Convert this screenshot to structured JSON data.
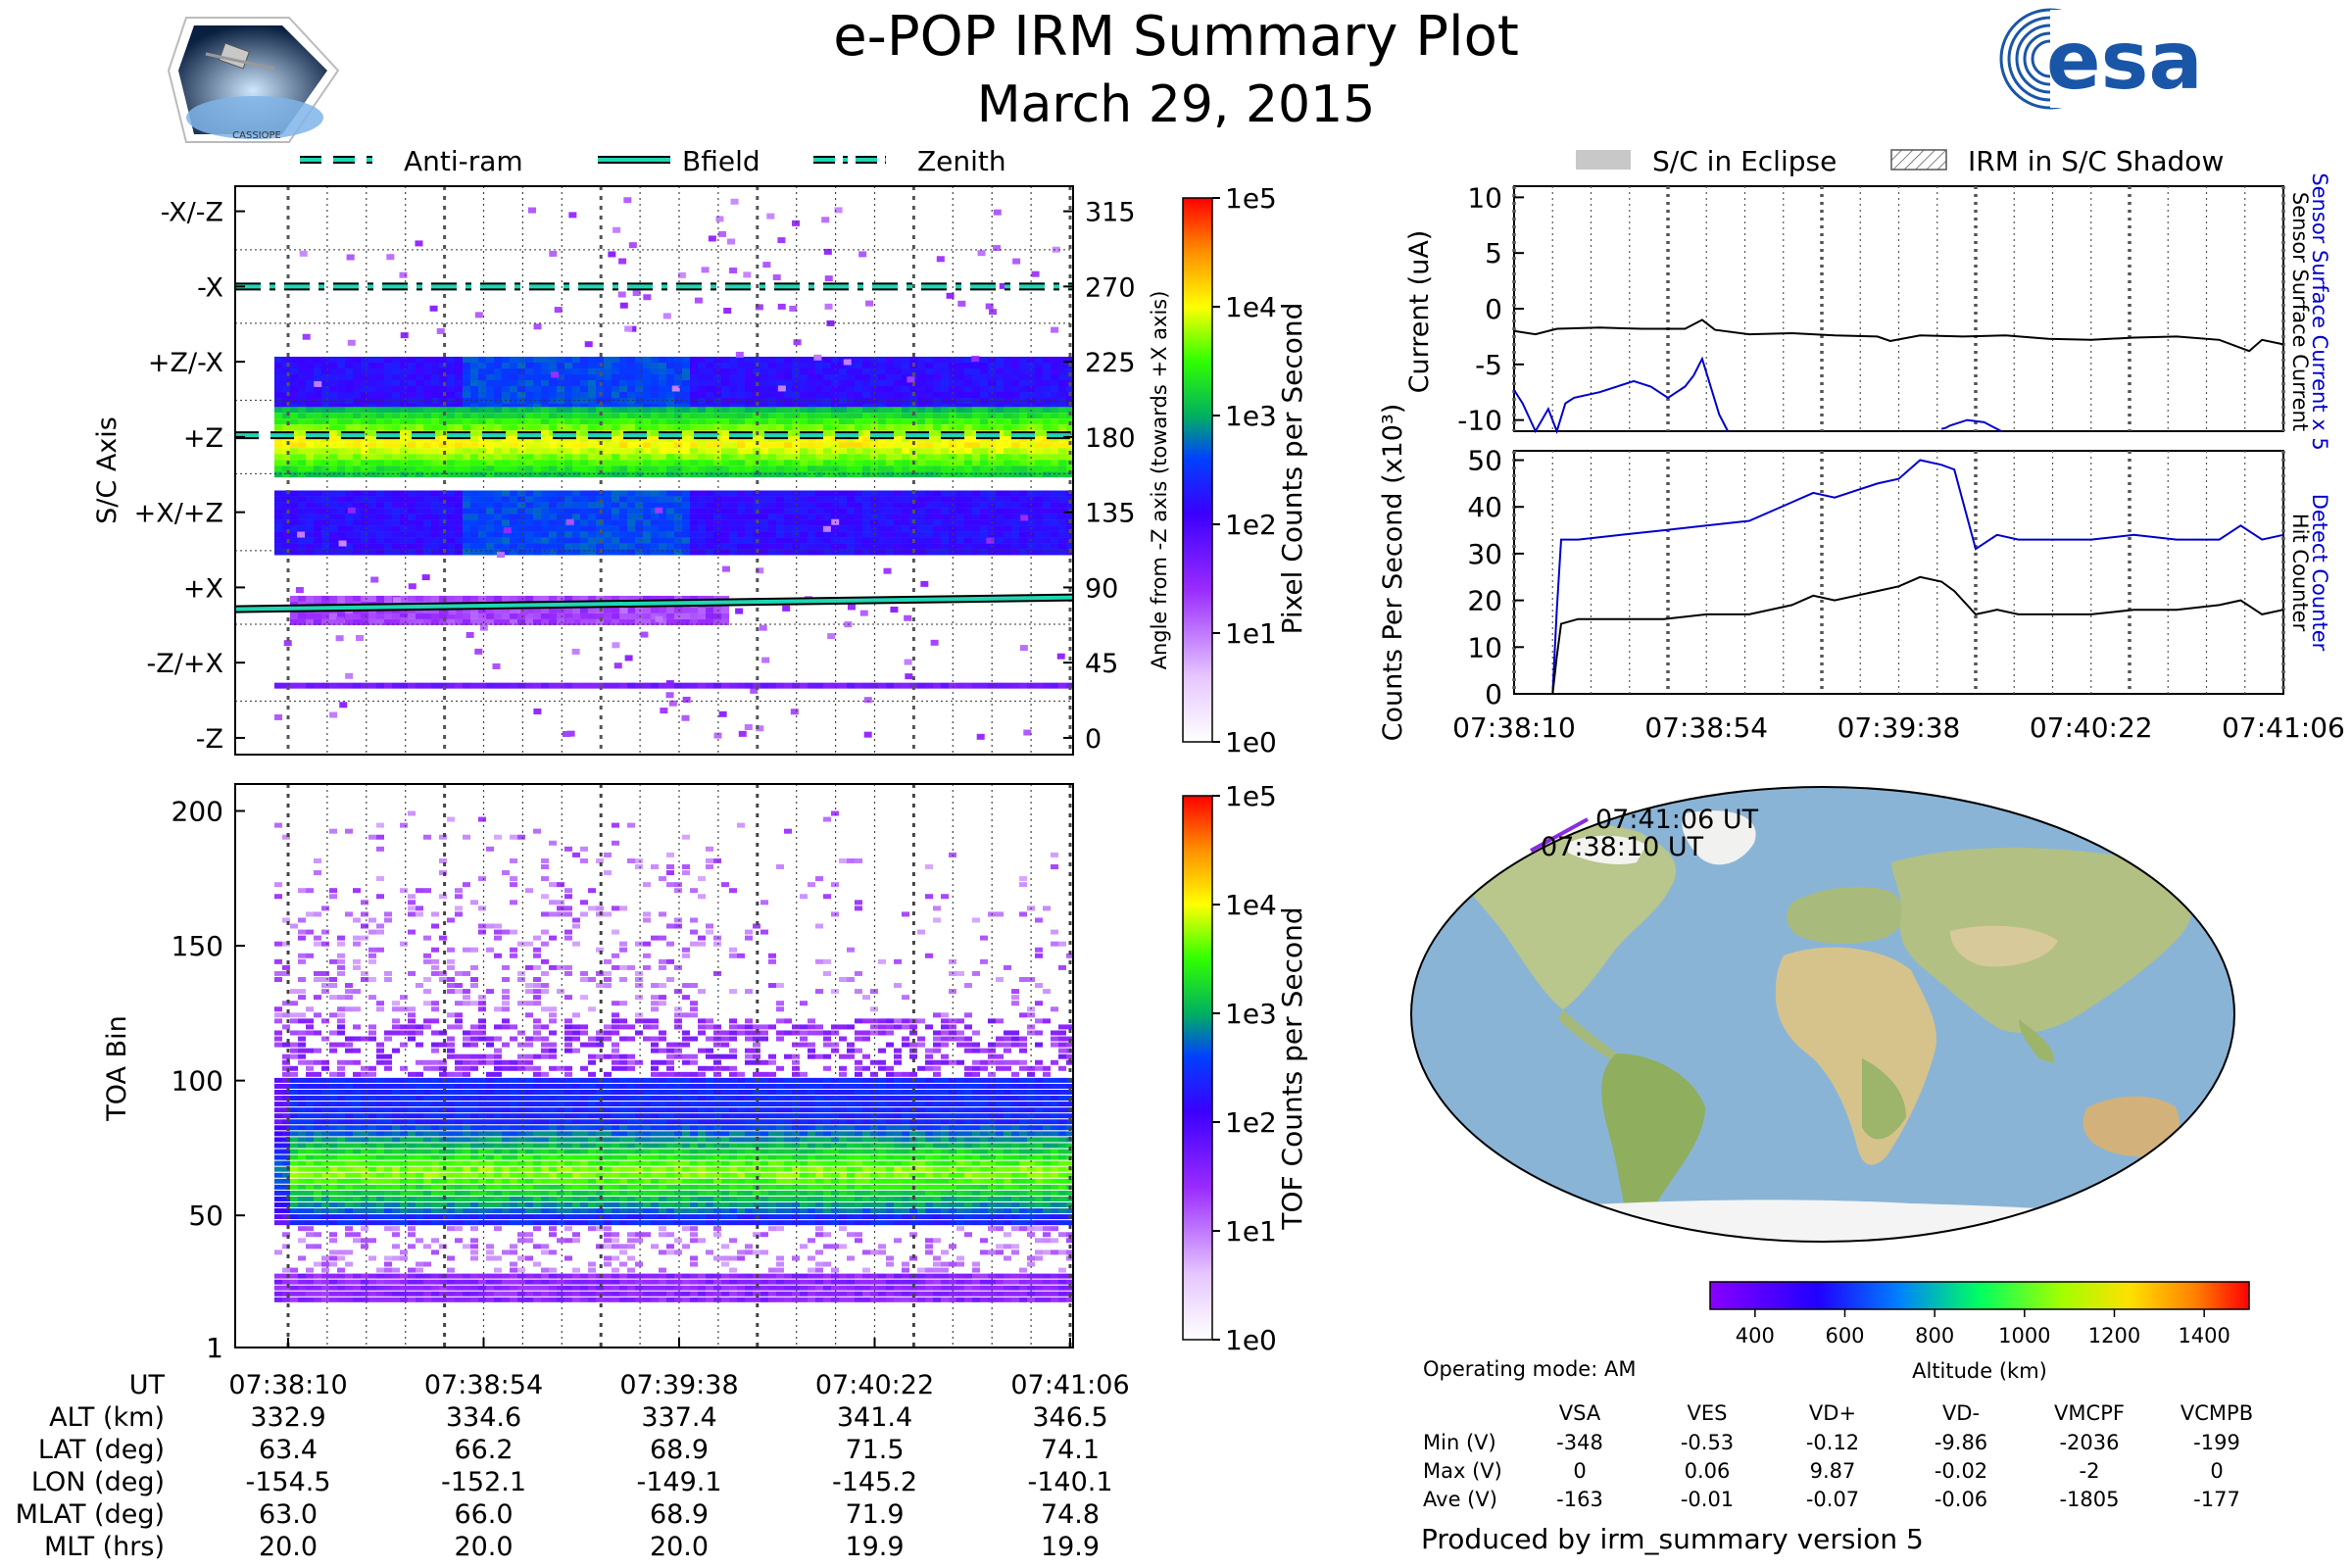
{
  "title": "e-POP IRM Summary Plot",
  "subtitle": "March 29, 2015",
  "logos": {
    "mission": "CASSIOPE",
    "agency": "esa"
  },
  "legend_left": {
    "items": [
      "Anti-ram",
      "Bfield",
      "Zenith"
    ]
  },
  "legend_right": {
    "items": [
      "S/C in Eclipse",
      "IRM in S/C Shadow"
    ]
  },
  "colors": {
    "line_cyan": "#1fd6b4",
    "blue": "#0000cc",
    "black": "#000000"
  },
  "time_ticks": [
    "07:38:10",
    "07:38:54",
    "07:39:38",
    "07:40:22",
    "07:41:06"
  ],
  "chart_data": [
    {
      "id": "pixel",
      "type": "heatmap",
      "ylabel": "S/C Axis",
      "y_axis_ticks": [
        "-X/-Z",
        "-X",
        "+Z/-X",
        "+Z",
        "+X/+Z",
        "+X",
        "-Z/+X",
        "-Z"
      ],
      "angle_label": "Angle from -Z axis (towards +X axis)",
      "angle_ticks": [
        "315",
        "270",
        "225",
        "180",
        "135",
        "90",
        "45",
        "0"
      ],
      "ylim": [
        -10,
        330
      ],
      "colorbar": {
        "label": "Pixel Counts per Second",
        "ticks": [
          "1e5",
          "1e4",
          "1e3",
          "1e2",
          "1e1",
          "1e0"
        ]
      },
      "lines": [
        {
          "name": "Zenith",
          "angle": 270
        },
        {
          "name": "Anti-ram",
          "angle": 181
        },
        {
          "name": "Bfield",
          "angle_start": 77,
          "angle_end": 84
        }
      ],
      "bands": [
        {
          "angle_low": 198,
          "angle_high": 228,
          "log_count": 2.0
        },
        {
          "angle_low": 158,
          "angle_high": 198,
          "log_count": 3.0
        },
        {
          "angle_low": 112,
          "angle_high": 148,
          "log_count": 2.0
        },
        {
          "angle_low": 70,
          "angle_high": 85,
          "log_count": 1.3
        }
      ]
    },
    {
      "id": "tof",
      "type": "heatmap",
      "ylabel": "TOA Bin",
      "y_ticks": [
        "1",
        "50",
        "100",
        "150",
        "200"
      ],
      "ylim": [
        1,
        210
      ],
      "colorbar": {
        "label": "TOF Counts per Second",
        "ticks": [
          "1e5",
          "1e4",
          "1e3",
          "1e2",
          "1e1",
          "1e0"
        ]
      },
      "bands": [
        {
          "toa_low": 47,
          "toa_high": 102,
          "log_count": 2.0
        },
        {
          "toa_low": 55,
          "toa_high": 82,
          "log_count": 2.8
        },
        {
          "toa_low": 18,
          "toa_high": 30,
          "log_count": 1.0
        }
      ]
    },
    {
      "id": "current",
      "type": "line",
      "ylabel": "Current (uA)",
      "y_ticks": [
        "10",
        "5",
        "0",
        "-5",
        "-10"
      ],
      "ylim": [
        -11,
        11
      ],
      "right_labels": [
        "Sensor Surface Current x 5",
        "Sensor Surface Current"
      ],
      "series": [
        {
          "name": "Sensor Surface Current",
          "color": "#000000",
          "x": [
            0,
            5,
            10,
            20,
            30,
            40,
            44,
            47,
            55,
            65,
            75,
            85,
            88,
            95,
            105,
            115,
            125,
            135,
            145,
            155,
            165,
            172,
            175,
            180
          ],
          "y": [
            -2,
            -2.3,
            -1.8,
            -1.7,
            -1.8,
            -1.8,
            -1,
            -1.9,
            -2.3,
            -2.2,
            -2.4,
            -2.5,
            -2.9,
            -2.4,
            -2.5,
            -2.4,
            -2.7,
            -2.8,
            -2.6,
            -2.5,
            -2.8,
            -3.8,
            -2.8,
            -3.2
          ]
        },
        {
          "name": "Sensor Surface Current x 5",
          "color": "#0000cc",
          "x": [
            0,
            2,
            5,
            8,
            10,
            12,
            14,
            20,
            28,
            32,
            36,
            40,
            42,
            44,
            46,
            48,
            50
          ],
          "y": [
            -7.3,
            -8.5,
            -11,
            -9,
            -11,
            -8.5,
            -8,
            -7.5,
            -6.5,
            -7,
            -8,
            -7,
            -6,
            -4.5,
            -7,
            -9.5,
            -11
          ]
        },
        {
          "name": "Sensor Surface Current x 5 (late)",
          "color": "#0000cc",
          "x": [
            100,
            101,
            102,
            106,
            110,
            114
          ],
          "y": [
            -10.8,
            -10.7,
            -10.5,
            -10,
            -10.2,
            -11
          ]
        }
      ]
    },
    {
      "id": "counts",
      "type": "line",
      "ylabel": "Counts Per Second (x10³)",
      "y_ticks": [
        "50",
        "40",
        "30",
        "20",
        "10",
        "0"
      ],
      "ylim": [
        0,
        52
      ],
      "right_labels": [
        "Detect Counter",
        "Hit Counter"
      ],
      "series": [
        {
          "name": "Detect Counter",
          "color": "#0000cc",
          "x": [
            0,
            4,
            9,
            10,
            11,
            15,
            25,
            35,
            45,
            55,
            65,
            70,
            75,
            85,
            90,
            95,
            100,
            103,
            108,
            113,
            118,
            125,
            135,
            145,
            155,
            165,
            170,
            175,
            180
          ],
          "y": [
            0,
            0,
            0,
            18,
            33,
            33,
            34,
            35,
            36,
            37,
            41,
            43,
            42,
            45,
            46,
            50,
            49,
            48,
            31,
            34,
            33,
            33,
            33,
            34,
            33,
            33,
            36,
            33,
            34
          ]
        },
        {
          "name": "Hit Counter",
          "color": "#000000",
          "x": [
            0,
            4,
            9,
            10,
            11,
            15,
            25,
            35,
            45,
            55,
            65,
            70,
            75,
            85,
            90,
            95,
            100,
            103,
            108,
            113,
            118,
            125,
            135,
            145,
            155,
            165,
            170,
            175,
            180
          ],
          "y": [
            0,
            0,
            0,
            8,
            15,
            16,
            16,
            16,
            17,
            17,
            19,
            21,
            20,
            22,
            23,
            25,
            24,
            22,
            17,
            18,
            17,
            17,
            17,
            18,
            18,
            19,
            20,
            17,
            18
          ]
        }
      ]
    }
  ],
  "map": {
    "label_end": "07:41:06 UT",
    "label_start": "07:38:10 UT",
    "colorbar_label": "Altitude (km)",
    "colorbar_ticks": [
      "400",
      "600",
      "800",
      "1000",
      "1200",
      "1400"
    ],
    "track_lat": [
      63.4,
      66.2,
      68.9,
      71.5,
      74.1
    ],
    "track_lon": [
      -154.5,
      -152.1,
      -149.1,
      -145.2,
      -140.1
    ]
  },
  "ephemeris": {
    "row_labels": [
      "UT",
      "ALT (km)",
      "LAT (deg)",
      "LON (deg)",
      "MLAT (deg)",
      "MLT (hrs)"
    ],
    "columns": [
      [
        "07:38:10",
        "332.9",
        "63.4",
        "-154.5",
        "63.0",
        "20.0"
      ],
      [
        "07:38:54",
        "334.6",
        "66.2",
        "-152.1",
        "66.0",
        "20.0"
      ],
      [
        "07:39:38",
        "337.4",
        "68.9",
        "-149.1",
        "68.9",
        "20.0"
      ],
      [
        "07:40:22",
        "341.4",
        "71.5",
        "-145.2",
        "71.9",
        "19.9"
      ],
      [
        "07:41:06",
        "346.5",
        "74.1",
        "-140.1",
        "74.8",
        "19.9"
      ]
    ]
  },
  "operating_mode": "Operating mode: AM",
  "voltages": {
    "headers": [
      "VSA",
      "VES",
      "VD+",
      "VD-",
      "VMCPF",
      "VCMPB"
    ],
    "rows": [
      {
        "label": "Min (V)",
        "values": [
          "-348",
          "-0.53",
          "-0.12",
          "-9.86",
          "-2036",
          "-199"
        ]
      },
      {
        "label": "Max (V)",
        "values": [
          "0",
          "0.06",
          "9.87",
          "-0.02",
          "-2",
          "0"
        ]
      },
      {
        "label": "Ave (V)",
        "values": [
          "-163",
          "-0.01",
          "-0.07",
          "-0.06",
          "-1805",
          "-177"
        ]
      }
    ]
  },
  "footer": "Produced by irm_summary version 5"
}
